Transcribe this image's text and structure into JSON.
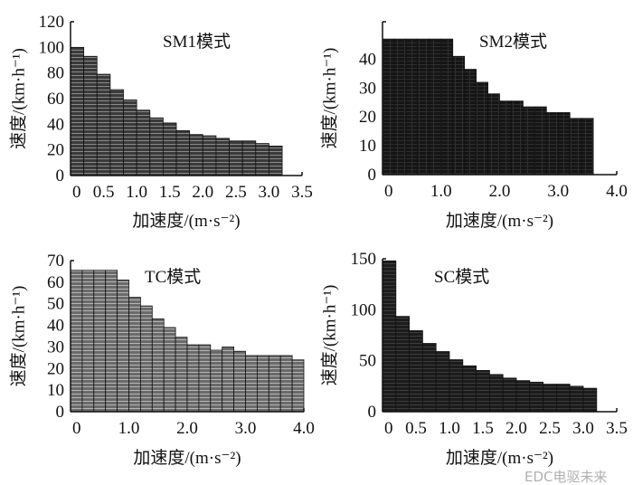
{
  "chart_data": [
    {
      "type": "bar",
      "title": "SM1模式",
      "xlabel": "加速度/(m·s⁻²)",
      "ylabel": "速度/(km·h⁻¹)",
      "bar_width": 0.2,
      "xlim": [
        0,
        3.5
      ],
      "ylim": [
        0,
        120
      ],
      "xticks": [
        "0",
        "0.5",
        "1.0",
        "1.5",
        "2.0",
        "2.5",
        "3.0",
        "3.5"
      ],
      "xtick_values": [
        0,
        0.5,
        1.0,
        1.5,
        2.0,
        2.5,
        3.0,
        3.5
      ],
      "yticks": [
        0,
        20,
        40,
        60,
        80,
        100,
        120
      ],
      "values": [
        100,
        93,
        79,
        67,
        59,
        51,
        45,
        41,
        35,
        32,
        31,
        29,
        27,
        27,
        25,
        23
      ],
      "fill": "#3a3a3a",
      "line": "#8a8a8a",
      "pattern": "horizontal"
    },
    {
      "type": "bar",
      "title": "SM2模式",
      "xlabel": "加速度/(m·s⁻²)",
      "ylabel": "速度/(km·h⁻¹)",
      "bar_width": 0.2,
      "xlim": [
        0,
        4.0
      ],
      "ylim": [
        0,
        53
      ],
      "xticks": [
        "0",
        "1.0",
        "2.0",
        "3.0",
        "4.0"
      ],
      "xtick_values": [
        0,
        1.0,
        2.0,
        3.0,
        4.0
      ],
      "yticks": [
        0,
        10,
        20,
        30,
        40
      ],
      "values": [
        47,
        47,
        47,
        47,
        47,
        47,
        41,
        36.5,
        32,
        28,
        25.5,
        25.5,
        23.5,
        23.5,
        21.5,
        21.5,
        19.5,
        19.5
      ],
      "fill": "#151515",
      "line": "#2e2e2e",
      "pattern": "grid"
    },
    {
      "type": "bar",
      "title": "TC模式",
      "xlabel": "加速度/(m·s⁻²)",
      "ylabel": "速度/(km·h⁻¹)",
      "bar_width": 0.2,
      "xlim": [
        0,
        4.0
      ],
      "ylim": [
        0,
        70
      ],
      "xticks": [
        "0",
        "1.0",
        "2.0",
        "3.0",
        "4.0"
      ],
      "xtick_values": [
        0,
        1.0,
        2.0,
        3.0,
        4.0
      ],
      "yticks": [
        0,
        10,
        20,
        30,
        40,
        50,
        60,
        70
      ],
      "values": [
        65.5,
        65.5,
        65.5,
        65.5,
        61,
        53,
        49,
        43,
        39,
        34.5,
        31,
        31,
        28.5,
        30,
        28,
        26,
        26,
        26,
        26,
        24
      ],
      "fill": "#6a6a6a",
      "line": "#b5b5b5",
      "pattern": "horizontal"
    },
    {
      "type": "bar",
      "title": "SC模式",
      "xlabel": "加速度/(m·s⁻²)",
      "ylabel": "速度/(km·h⁻¹)",
      "bar_width": 0.2,
      "xlim": [
        0,
        3.5
      ],
      "ylim": [
        0,
        150
      ],
      "xticks": [
        "0",
        "0.5",
        "1.0",
        "1.5",
        "2.0",
        "2.5",
        "3.0",
        "3.5"
      ],
      "xtick_values": [
        0,
        0.5,
        1.0,
        1.5,
        2.0,
        2.5,
        3.0,
        3.5
      ],
      "yticks": [
        0,
        50,
        100,
        150
      ],
      "values": [
        148,
        93.5,
        79.5,
        67,
        59,
        51,
        45,
        40.5,
        36.5,
        33,
        30.5,
        29,
        27,
        27,
        25,
        23
      ],
      "fill": "#1c1c1c",
      "line": "#3c3c3c",
      "pattern": "horizontal"
    }
  ],
  "watermark": "EDC电驱未来"
}
